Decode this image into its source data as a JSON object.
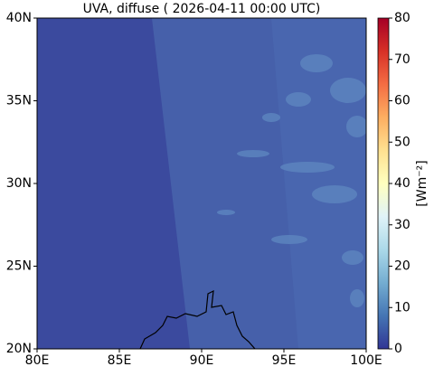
{
  "title": "UVA, diffuse ( 2026-04-11 00:00 UTC)",
  "map": {
    "xlim": [
      80,
      100
    ],
    "ylim": [
      20,
      40
    ],
    "xticks": [
      {
        "value": 80,
        "label": "80E"
      },
      {
        "value": 85,
        "label": "85E"
      },
      {
        "value": 90,
        "label": "90E"
      },
      {
        "value": 95,
        "label": "95E"
      },
      {
        "value": 100,
        "label": "100E"
      }
    ],
    "yticks": [
      {
        "value": 20,
        "label": "20N"
      },
      {
        "value": 25,
        "label": "25N"
      },
      {
        "value": 30,
        "label": "30N"
      },
      {
        "value": 35,
        "label": "35N"
      },
      {
        "value": 40,
        "label": "40N"
      }
    ]
  },
  "colorbar": {
    "label": "[Wm⁻²]",
    "lim": [
      0,
      80
    ],
    "ticks": [
      0,
      10,
      20,
      30,
      40,
      50,
      60,
      70,
      80
    ],
    "colors": [
      "#313695",
      "#4575b4",
      "#74add1",
      "#abd9e9",
      "#e0f3f8",
      "#ffffbf",
      "#fee090",
      "#fdae61",
      "#f46d43",
      "#d73027",
      "#a50026"
    ]
  }
}
